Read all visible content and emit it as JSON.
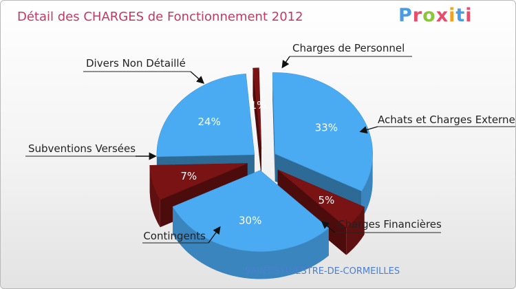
{
  "chart_data": {
    "type": "pie",
    "title": "Détail des CHARGES de Fonctionnement 2012",
    "subtitle": "SAINT-SYLVESTRE-DE-CORMEILLES",
    "logo": "Proxiti",
    "slices": [
      {
        "label": "Charges de Personnel",
        "value": 1,
        "display": "1%",
        "color": "#7a1414"
      },
      {
        "label": "Achats et Charges Externes",
        "value": 33,
        "display": "33%",
        "color": "#4aabf2"
      },
      {
        "label": "Charges Financières",
        "value": 5,
        "display": "5%",
        "color": "#7a1414"
      },
      {
        "label": "Contingents",
        "value": 30,
        "display": "30%",
        "color": "#4aabf2"
      },
      {
        "label": "Subventions Versées",
        "value": 7,
        "display": "7%",
        "color": "#7a1414"
      },
      {
        "label": "Divers Non Détaillé",
        "value": 24,
        "display": "24%",
        "color": "#4aabf2"
      }
    ]
  }
}
